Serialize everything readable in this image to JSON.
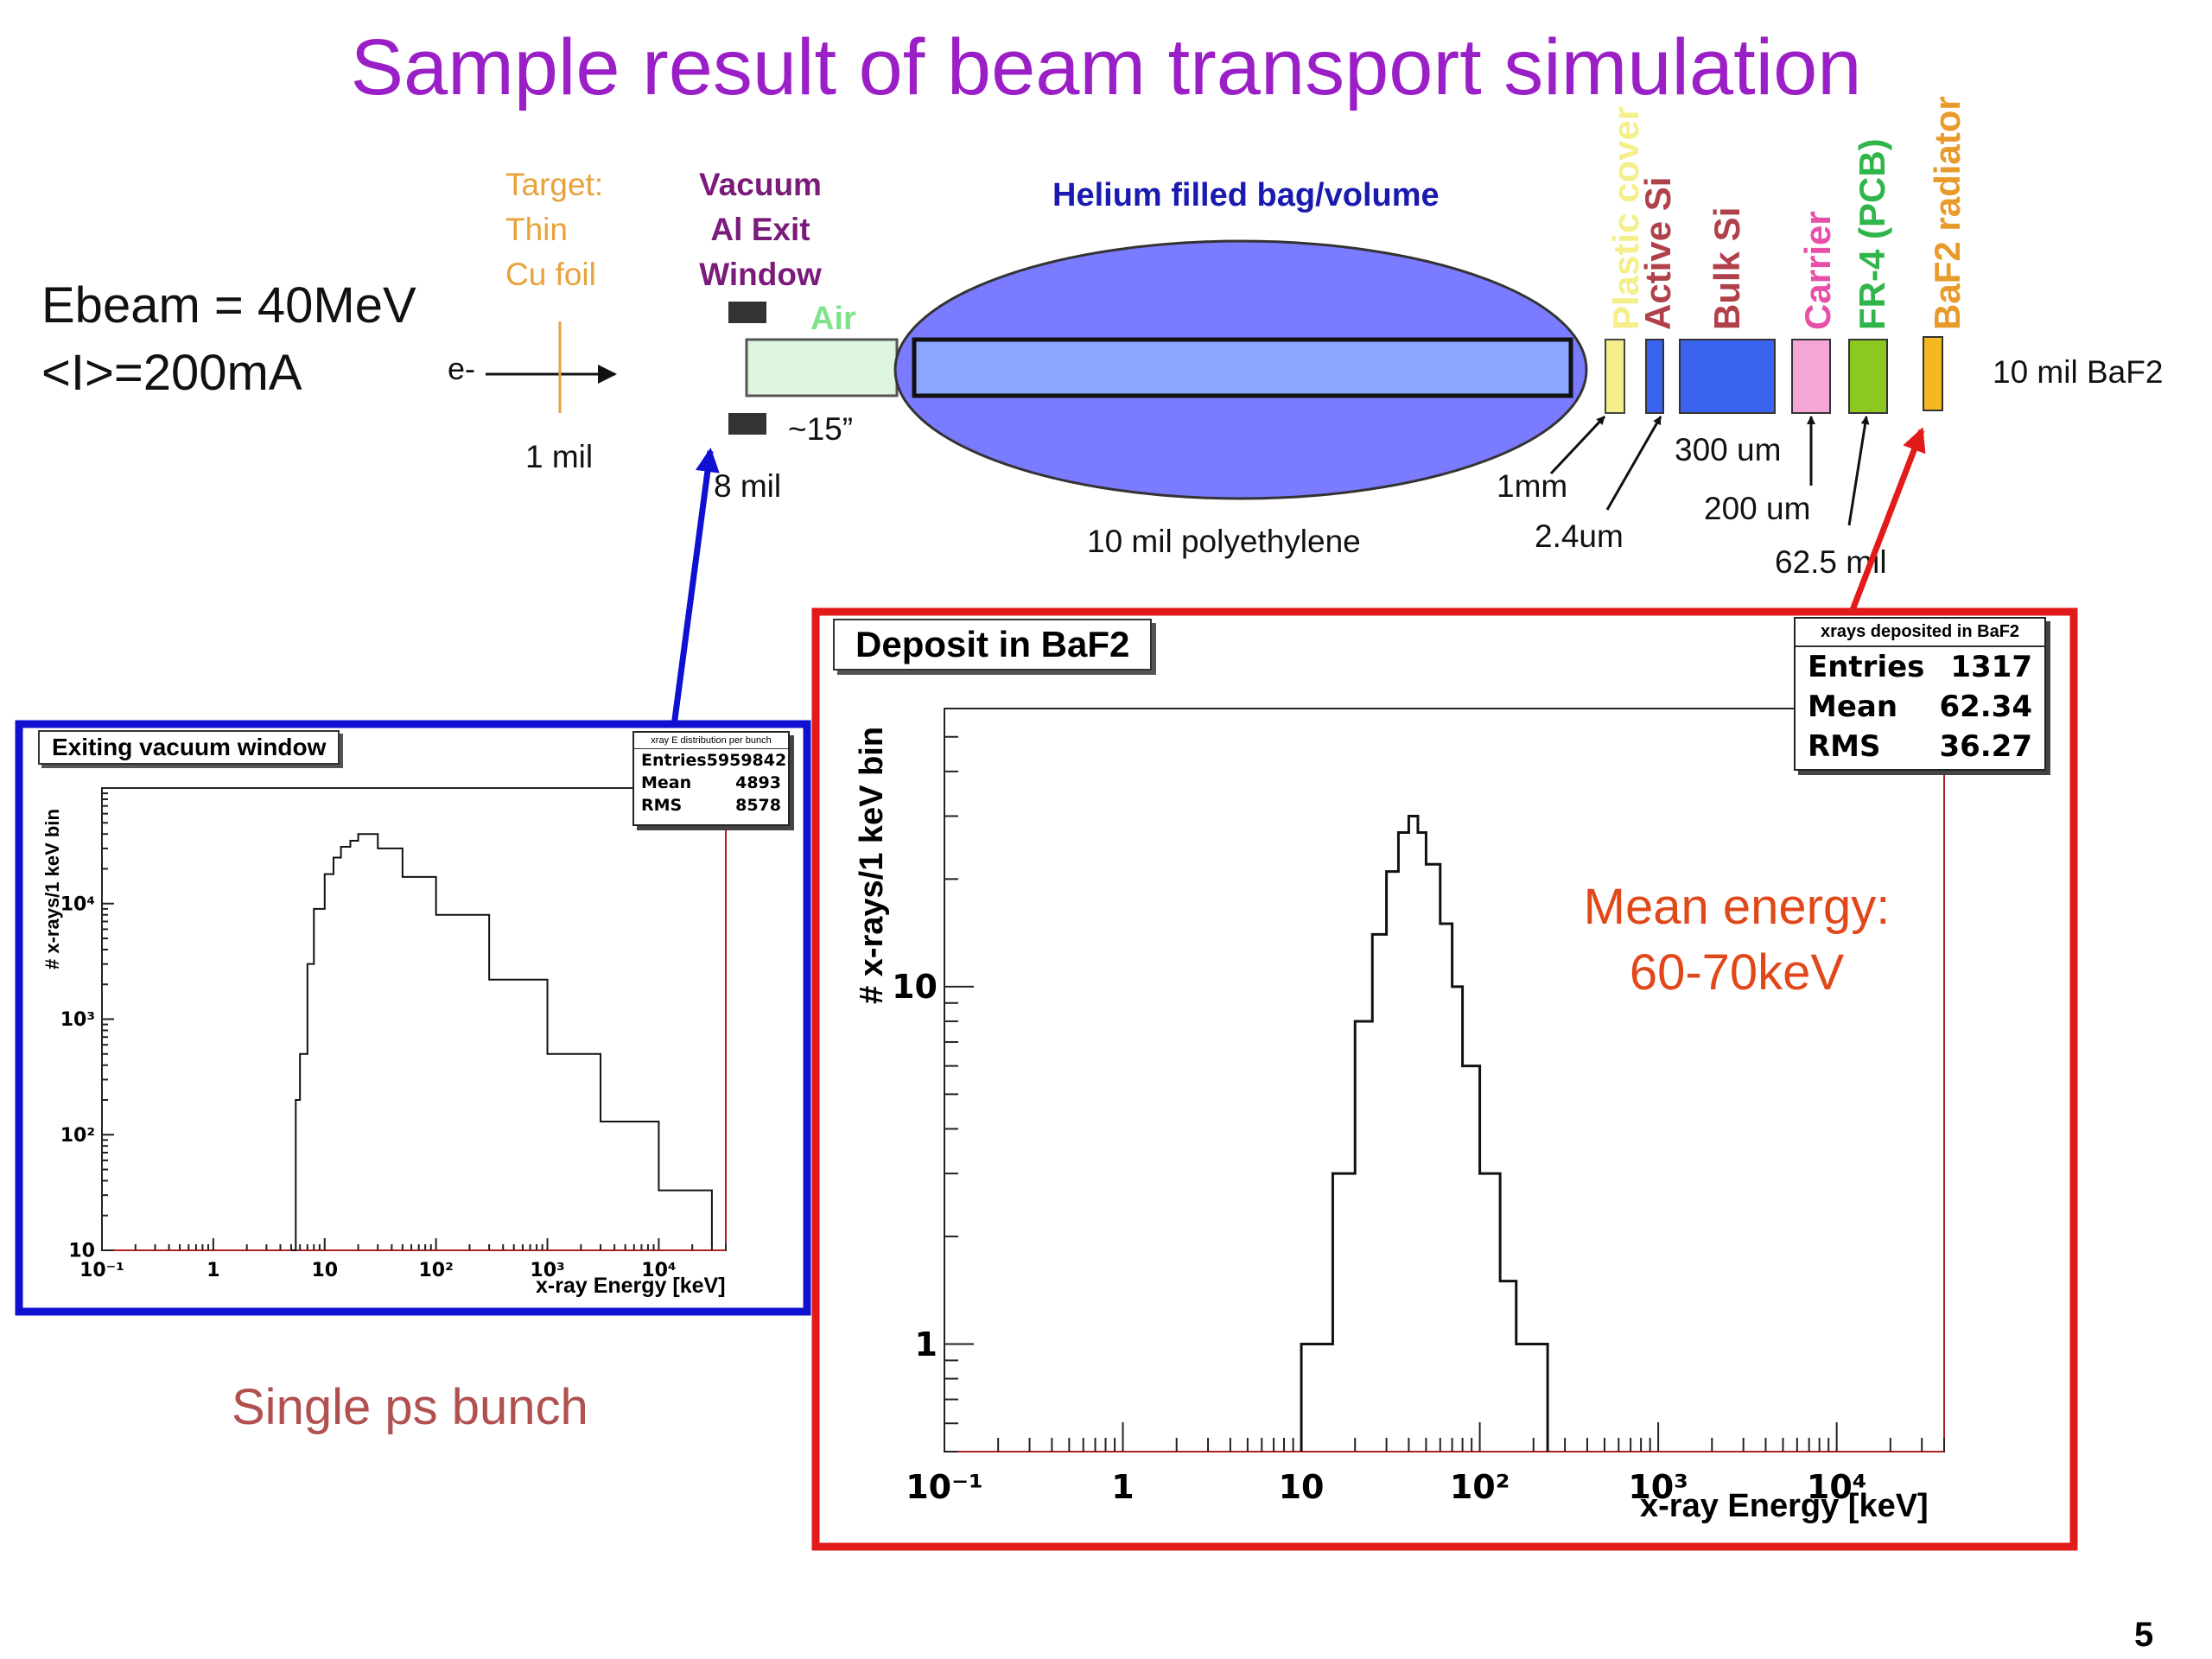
{
  "title": "Sample result of beam transport simulation",
  "page_number": "5",
  "beam": {
    "energy": "Ebeam = 40MeV",
    "current": "<I>=200mA",
    "particle": "e-"
  },
  "diagram": {
    "target": {
      "line1": "Target:",
      "line2": "Thin",
      "line3": "Cu foil",
      "thickness": "1 mil",
      "color": "#e8a23c"
    },
    "window": {
      "line1": "Vacuum",
      "line2": "Al Exit",
      "line3": "Window",
      "thickness": "8 mil",
      "color": "#7a1a7a"
    },
    "air": {
      "label": "Air",
      "length": "~15”",
      "color": "#7fe38a"
    },
    "helium": {
      "label": "Helium filled bag/volume",
      "wall": "10 mil polyethylene",
      "color": "#7b7bff"
    },
    "layers": [
      {
        "name": "Plastic cover",
        "color": "#f4ef8a",
        "dim": "1mm"
      },
      {
        "name": "Active Si",
        "color": "#b0404a",
        "dim": "2.4um"
      },
      {
        "name": "Bulk Si",
        "color": "#b0404a",
        "dim": "300 um"
      },
      {
        "name": "Carrier",
        "color": "#e84fa8",
        "dim": "200 um"
      },
      {
        "name": "FR-4 (PCB)",
        "color": "#2fb54a",
        "dim": "62.5 mil"
      },
      {
        "name": "BaF2 radiator",
        "color": "#e89a2a",
        "dim": "10 mil BaF2"
      }
    ]
  },
  "chart_data": [
    {
      "type": "line",
      "title": "Exiting vacuum window",
      "caption": "Single ps bunch",
      "xlabel": "x-ray Energy [keV]",
      "ylabel": "# x-rays/1 keV bin",
      "xscale": "log",
      "yscale": "log",
      "xlim": [
        0.1,
        40000
      ],
      "ylim": [
        10,
        100000
      ],
      "x_ticks": [
        "10⁻¹",
        "1",
        "10",
        "10²",
        "10³",
        "10⁴"
      ],
      "y_ticks": [
        "10",
        "10²",
        "10³",
        "10⁴"
      ],
      "stats": {
        "title": "xray E distribution per bunch",
        "Entries": "5959842",
        "Mean": "4893",
        "RMS": "8578"
      },
      "series": [
        {
          "x": [
            5,
            5.5,
            6,
            7,
            8,
            10,
            12,
            14,
            17,
            20,
            30,
            50,
            100,
            300,
            1000,
            3000,
            10000,
            30000
          ],
          "y": [
            0,
            200,
            500,
            3000,
            9000,
            18000,
            25000,
            31000,
            35000,
            40000,
            30000,
            17000,
            8000,
            2200,
            500,
            130,
            33,
            11
          ]
        }
      ]
    },
    {
      "type": "line",
      "title": "Deposit in BaF2",
      "xlabel": "x-ray Energy [keV]",
      "ylabel": "# x-rays/1 keV bin",
      "xscale": "log",
      "yscale": "log",
      "xlim": [
        0.1,
        40000
      ],
      "ylim": [
        0.5,
        60
      ],
      "x_ticks": [
        "10⁻¹",
        "1",
        "10",
        "10²",
        "10³",
        "10⁴"
      ],
      "y_ticks": [
        "1",
        "10"
      ],
      "annotation": {
        "line1": "Mean energy:",
        "line2": "60-70keV"
      },
      "stats": {
        "title": "xrays deposited in BaF2",
        "Entries": "1317",
        "Mean": "62.34",
        "RMS": "36.27"
      },
      "series": [
        {
          "x": [
            10,
            15,
            20,
            25,
            30,
            35,
            40,
            45,
            50,
            60,
            70,
            80,
            100,
            130,
            160,
            200,
            240
          ],
          "y": [
            1,
            3,
            8,
            14,
            21,
            27,
            30,
            27,
            22,
            15,
            10,
            6,
            3,
            1.5,
            1,
            1,
            0
          ]
        }
      ]
    }
  ]
}
